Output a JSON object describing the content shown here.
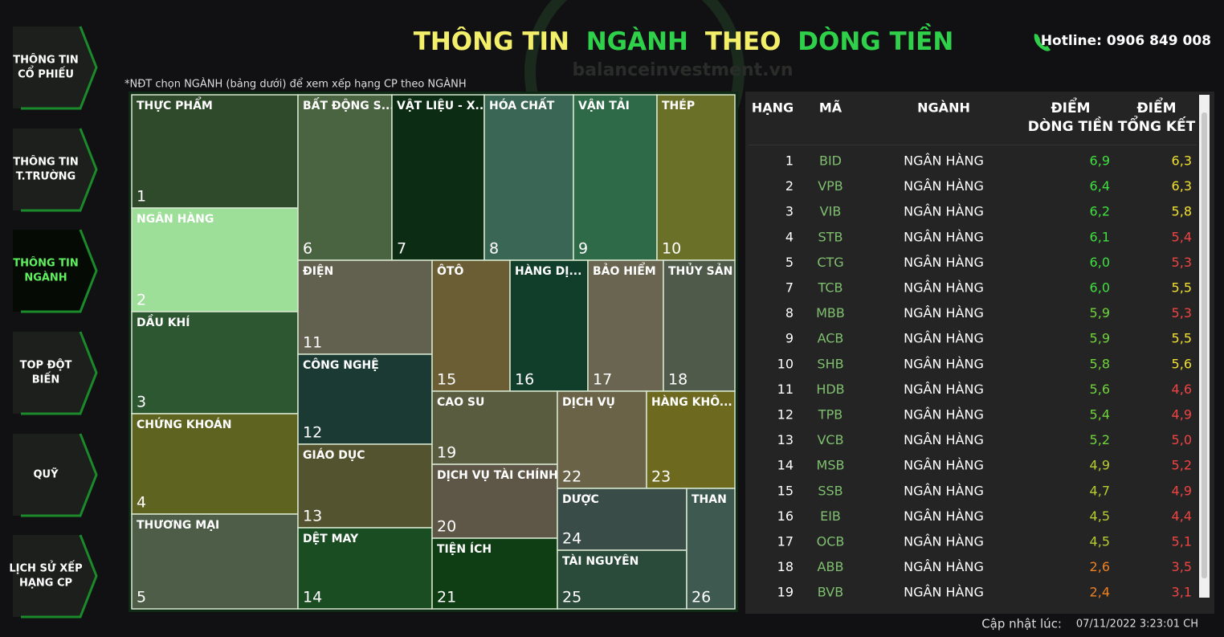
{
  "header": {
    "title": [
      "THÔNG TIN",
      "NGÀNH",
      "THEO",
      "DÒNG TIỀN"
    ],
    "hotline": "Hotline: 0906 849 008",
    "watermark": "balanceinvestment.vn"
  },
  "nav": [
    {
      "lines": [
        "THÔNG TIN",
        "CỔ PHIẾU"
      ]
    },
    {
      "lines": [
        "THÔNG TIN",
        "T.TRƯỜNG"
      ]
    },
    {
      "lines": [
        "THÔNG TIN",
        "NGÀNH"
      ],
      "active": true
    },
    {
      "lines": [
        "TOP ĐỘT",
        "BIẾN"
      ]
    },
    {
      "lines": [
        "QUỸ"
      ]
    },
    {
      "lines": [
        "LỊCH SỬ XẾP",
        "HẠNG CP"
      ]
    }
  ],
  "note": "*NĐT chọn NGÀNH (bảng dưới) để xem xếp hạng CP theo NGÀNH",
  "treemap": [
    {
      "label": "THỰC PHẨM",
      "rank": 1,
      "color": "#2f4a2b"
    },
    {
      "label": "NGÂN HÀNG",
      "rank": 2,
      "color": "#9ddf98"
    },
    {
      "label": "DẦU KHÍ",
      "rank": 3,
      "color": "#2c5731"
    },
    {
      "label": "CHỨNG KHOÁN",
      "rank": 4,
      "color": "#5e6320"
    },
    {
      "label": "THƯƠNG MẠI",
      "rank": 5,
      "color": "#4d5d47"
    },
    {
      "label": "BẤT ĐỘNG S...",
      "rank": 6,
      "color": "#4a6340"
    },
    {
      "label": "VẬT LIỆU - X...",
      "rank": 7,
      "color": "#0c2c13"
    },
    {
      "label": "HÓA CHẤT",
      "rank": 8,
      "color": "#3a6655"
    },
    {
      "label": "VẬN TẢI",
      "rank": 9,
      "color": "#2e6a48"
    },
    {
      "label": "THÉP",
      "rank": 10,
      "color": "#6b7029"
    },
    {
      "label": "ĐIỆN",
      "rank": 11,
      "color": "#62604e"
    },
    {
      "label": "CÔNG NGHỆ",
      "rank": 12,
      "color": "#1a3a33"
    },
    {
      "label": "GIÁO DỤC",
      "rank": 13,
      "color": "#53532f"
    },
    {
      "label": "DỆT MAY",
      "rank": 14,
      "color": "#1b4d22"
    },
    {
      "label": "ÔTÔ",
      "rank": 15,
      "color": "#6b5e35"
    },
    {
      "label": "HÀNG DỊ...",
      "rank": 16,
      "color": "#103e2a"
    },
    {
      "label": "BẢO HIỂM",
      "rank": 17,
      "color": "#6a6550"
    },
    {
      "label": "THỦY SẢN",
      "rank": 18,
      "color": "#4f5a4a"
    },
    {
      "label": "CAO SU",
      "rank": 19,
      "color": "#5a5c40"
    },
    {
      "label": "DỊCH VỤ TÀI CHÍNH",
      "rank": 20,
      "color": "#5e5646"
    },
    {
      "label": "TIỆN ÍCH",
      "rank": 21,
      "color": "#0f3e14"
    },
    {
      "label": "DỊCH VỤ",
      "rank": 22,
      "color": "#6a6348"
    },
    {
      "label": "HÀNG KHÔ...",
      "rank": 23,
      "color": "#6d6a20"
    },
    {
      "label": "DƯỢC",
      "rank": 24,
      "color": "#3a4c48"
    },
    {
      "label": "TÀI NGUYÊN",
      "rank": 25,
      "color": "#2a4a3a"
    },
    {
      "label": "THAN",
      "rank": 26,
      "color": "#3e5a50"
    }
  ],
  "table": {
    "columns": [
      [
        "HẠNG"
      ],
      [
        "MÃ"
      ],
      [
        "NGÀNH"
      ],
      [
        "ĐIỂM",
        "DÒNG TIỀN"
      ],
      [
        "ĐIỂM",
        "TỔNG KẾT"
      ]
    ],
    "rows": [
      {
        "rank": 1,
        "code": "BID",
        "sector": "NGÂN HÀNG",
        "flow": "6,9",
        "total": "6,3",
        "flow_color": "#3fe03f",
        "total_color": "#f0e030"
      },
      {
        "rank": 2,
        "code": "VPB",
        "sector": "NGÂN HÀNG",
        "flow": "6,4",
        "total": "6,3",
        "flow_color": "#3fe03f",
        "total_color": "#f0e030"
      },
      {
        "rank": 3,
        "code": "VIB",
        "sector": "NGÂN HÀNG",
        "flow": "6,2",
        "total": "5,8",
        "flow_color": "#3fe03f",
        "total_color": "#f0e030"
      },
      {
        "rank": 4,
        "code": "STB",
        "sector": "NGÂN HÀNG",
        "flow": "6,1",
        "total": "5,4",
        "flow_color": "#3fe03f",
        "total_color": "#f04444"
      },
      {
        "rank": 5,
        "code": "CTG",
        "sector": "NGÂN HÀNG",
        "flow": "6,0",
        "total": "5,3",
        "flow_color": "#3fe03f",
        "total_color": "#f04444"
      },
      {
        "rank": 7,
        "code": "TCB",
        "sector": "NGÂN HÀNG",
        "flow": "6,0",
        "total": "5,5",
        "flow_color": "#3fe03f",
        "total_color": "#f0e030"
      },
      {
        "rank": 8,
        "code": "MBB",
        "sector": "NGÂN HÀNG",
        "flow": "5,9",
        "total": "5,3",
        "flow_color": "#6fd43a",
        "total_color": "#f04444"
      },
      {
        "rank": 9,
        "code": "ACB",
        "sector": "NGÂN HÀNG",
        "flow": "5,9",
        "total": "5,5",
        "flow_color": "#6fd43a",
        "total_color": "#f0e030"
      },
      {
        "rank": 10,
        "code": "SHB",
        "sector": "NGÂN HÀNG",
        "flow": "5,8",
        "total": "5,6",
        "flow_color": "#6fd43a",
        "total_color": "#f0e030"
      },
      {
        "rank": 11,
        "code": "HDB",
        "sector": "NGÂN HÀNG",
        "flow": "5,6",
        "total": "4,6",
        "flow_color": "#6fd43a",
        "total_color": "#f04444"
      },
      {
        "rank": 12,
        "code": "TPB",
        "sector": "NGÂN HÀNG",
        "flow": "5,4",
        "total": "4,9",
        "flow_color": "#6fd43a",
        "total_color": "#f04444"
      },
      {
        "rank": 13,
        "code": "VCB",
        "sector": "NGÂN HÀNG",
        "flow": "5,2",
        "total": "5,0",
        "flow_color": "#6fd43a",
        "total_color": "#f04444"
      },
      {
        "rank": 14,
        "code": "MSB",
        "sector": "NGÂN HÀNG",
        "flow": "4,9",
        "total": "5,2",
        "flow_color": "#b8cc30",
        "total_color": "#f04444"
      },
      {
        "rank": 15,
        "code": "SSB",
        "sector": "NGÂN HÀNG",
        "flow": "4,7",
        "total": "4,9",
        "flow_color": "#b8cc30",
        "total_color": "#f04444"
      },
      {
        "rank": 16,
        "code": "EIB",
        "sector": "NGÂN HÀNG",
        "flow": "4,5",
        "total": "4,4",
        "flow_color": "#b8cc30",
        "total_color": "#f04444"
      },
      {
        "rank": 17,
        "code": "OCB",
        "sector": "NGÂN HÀNG",
        "flow": "4,5",
        "total": "5,1",
        "flow_color": "#b8cc30",
        "total_color": "#f04444"
      },
      {
        "rank": 18,
        "code": "ABB",
        "sector": "NGÂN HÀNG",
        "flow": "2,6",
        "total": "3,5",
        "flow_color": "#f08020",
        "total_color": "#f04444"
      },
      {
        "rank": 19,
        "code": "BVB",
        "sector": "NGÂN HÀNG",
        "flow": "2,4",
        "total": "3,1",
        "flow_color": "#f08020",
        "total_color": "#f04444"
      }
    ]
  },
  "footer": {
    "label": "Cập nhật lúc:",
    "timestamp": "07/11/2022 3:23:01 CH"
  }
}
